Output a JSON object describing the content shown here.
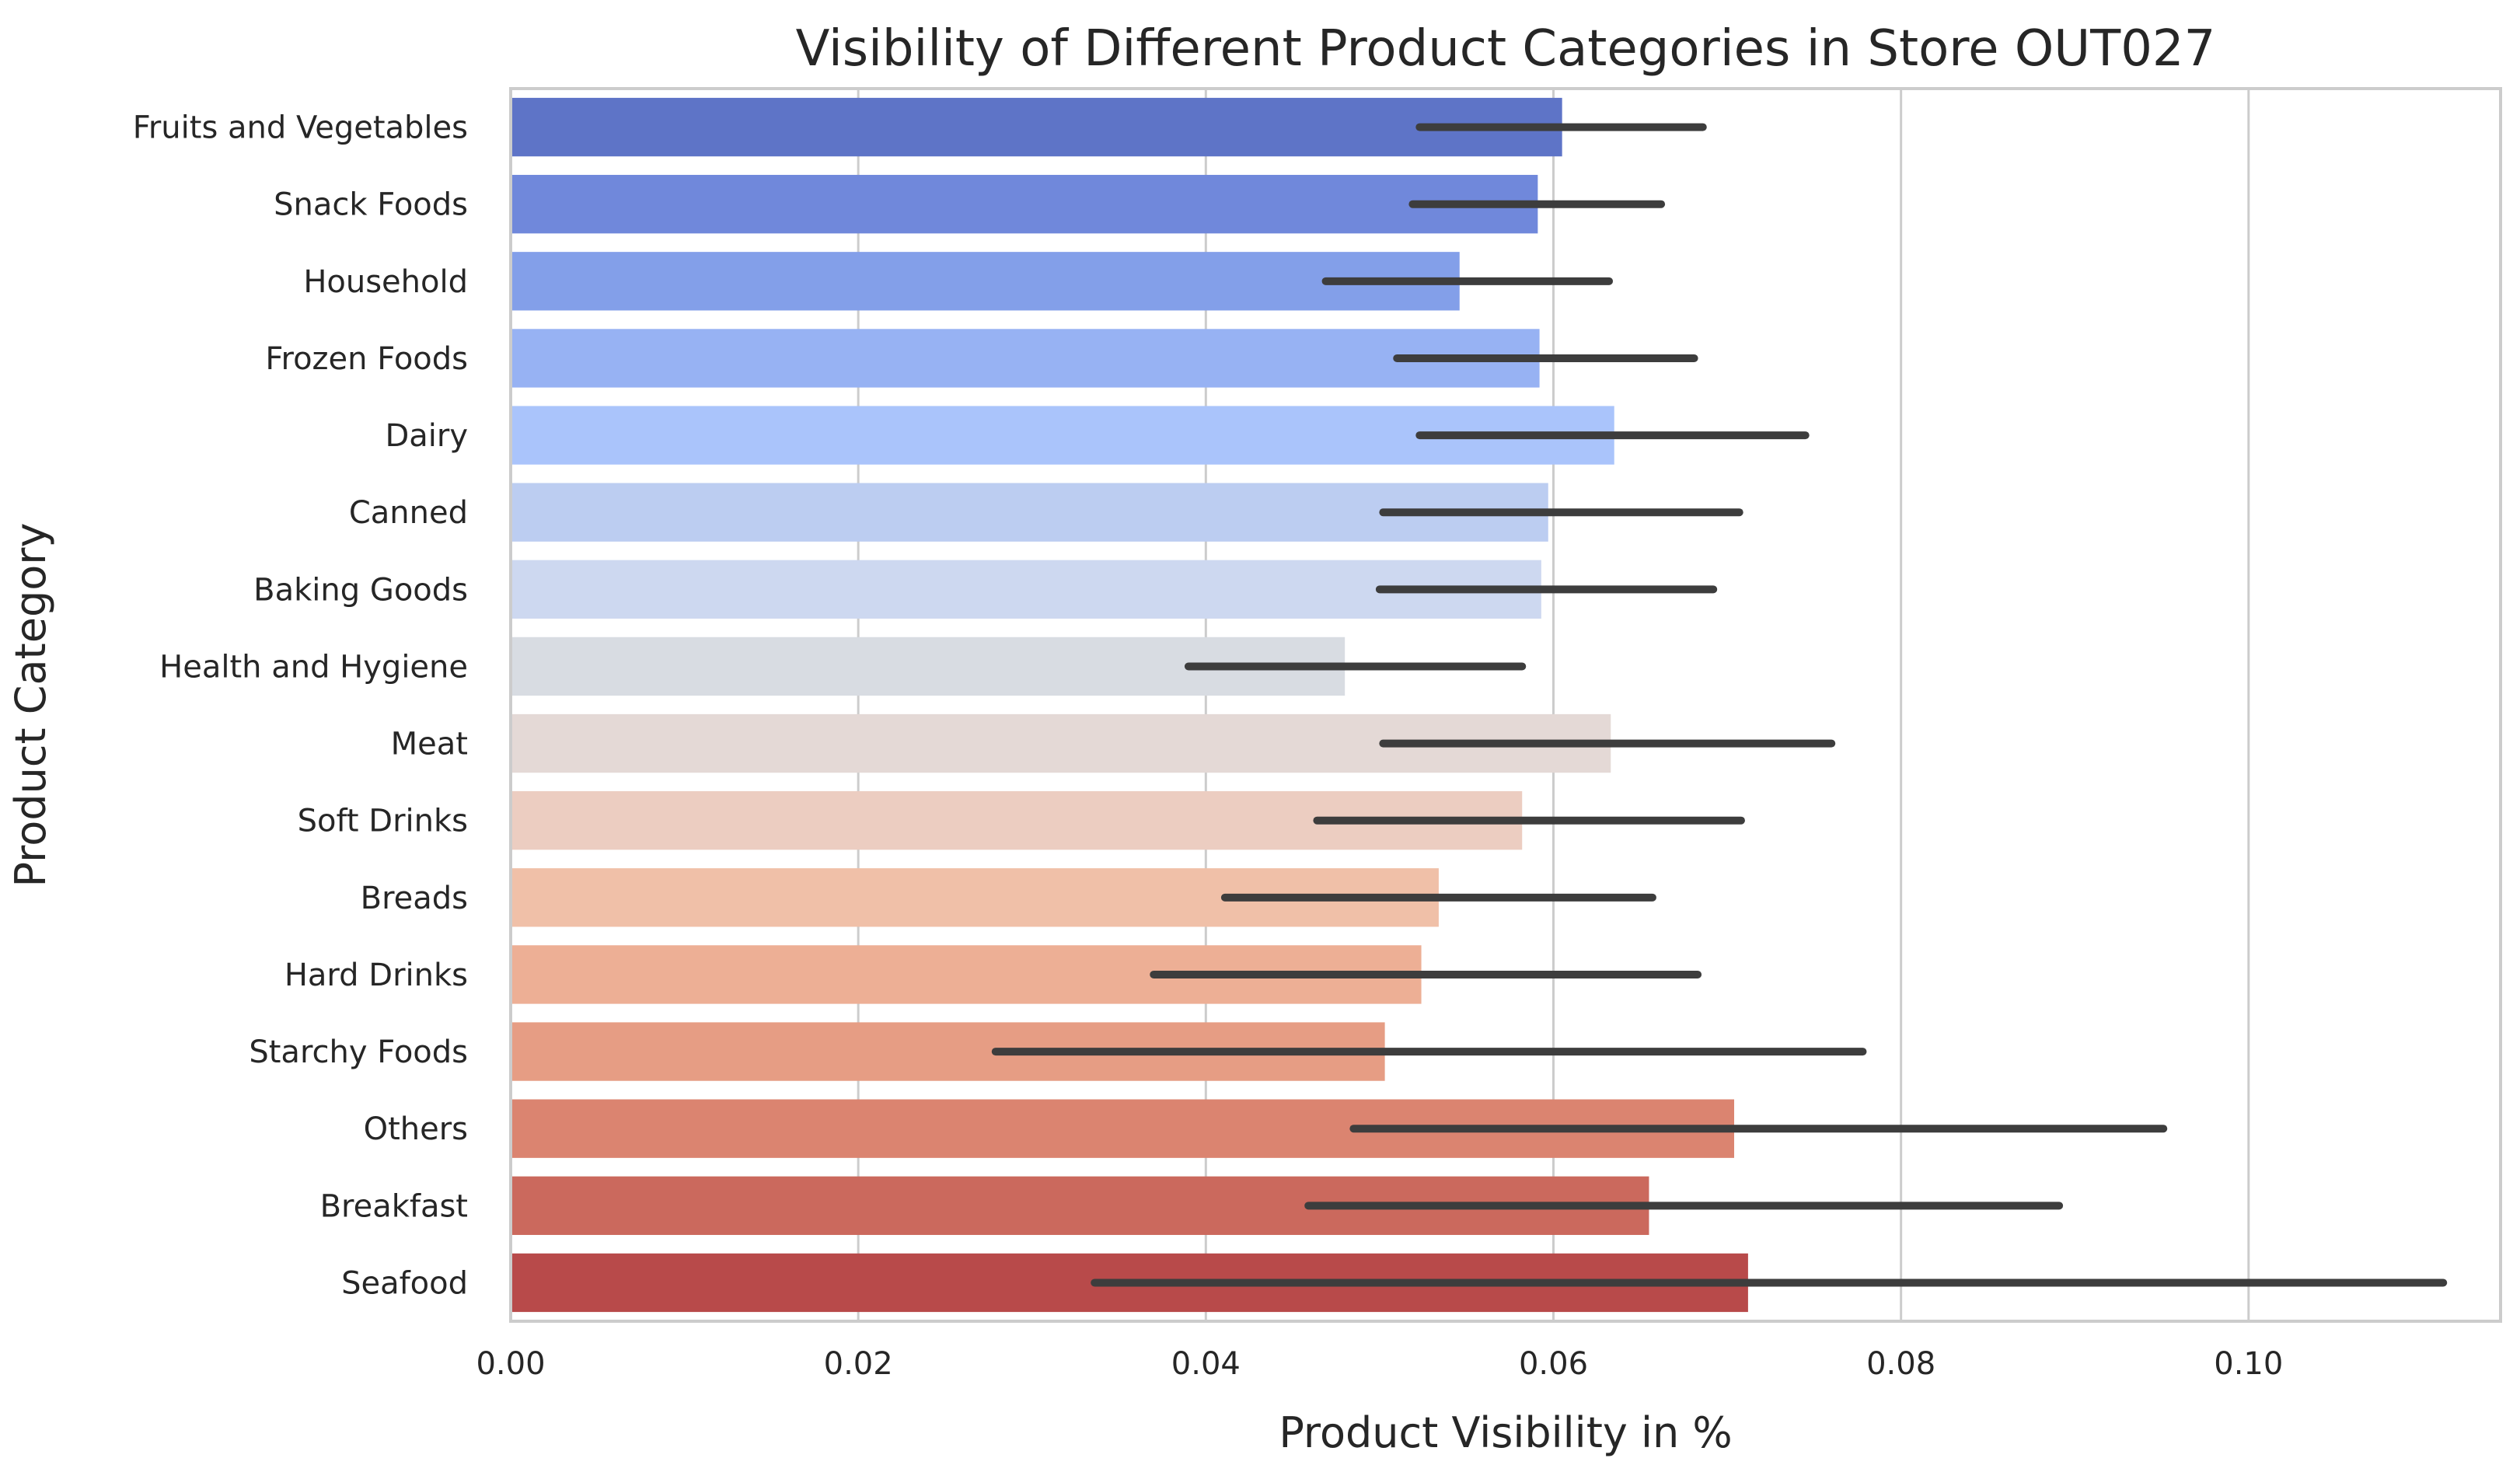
{
  "chart_data": {
    "type": "bar",
    "orientation": "horizontal",
    "title": "Visibility of Different Product Categories in Store OUT027",
    "xlabel": "Product Visibility in %",
    "ylabel": "Product Category",
    "xlim": [
      0,
      0.1145
    ],
    "xticks": [
      0.0,
      0.02,
      0.04,
      0.06,
      0.08,
      0.1
    ],
    "xtick_labels": [
      "0.00",
      "0.02",
      "0.04",
      "0.06",
      "0.08",
      "0.10"
    ],
    "grid": "x",
    "categories": [
      "Fruits and Vegetables",
      "Snack Foods",
      "Household",
      "Frozen Foods",
      "Dairy",
      "Canned",
      "Baking Goods",
      "Health and Hygiene",
      "Meat",
      "Soft Drinks",
      "Breads",
      "Hard Drinks",
      "Starchy Foods",
      "Others",
      "Breakfast",
      "Seafood"
    ],
    "values": [
      0.0605,
      0.0591,
      0.0546,
      0.0592,
      0.0635,
      0.0597,
      0.0593,
      0.048,
      0.0633,
      0.0582,
      0.0534,
      0.0524,
      0.0503,
      0.0704,
      0.0655,
      0.0712
    ],
    "error_low": [
      0.0523,
      0.0519,
      0.0469,
      0.051,
      0.0523,
      0.0502,
      0.05,
      0.039,
      0.0502,
      0.0464,
      0.0411,
      0.037,
      0.0279,
      0.0485,
      0.0459,
      0.0336
    ],
    "error_high": [
      0.0686,
      0.0662,
      0.0632,
      0.0681,
      0.0745,
      0.0707,
      0.0692,
      0.0582,
      0.076,
      0.0708,
      0.0657,
      0.0683,
      0.0778,
      0.0951,
      0.0891,
      0.1112
    ],
    "colors": [
      "#5e74c7",
      "#7088db",
      "#839fe9",
      "#97b2f3",
      "#aac4fb",
      "#bccdf1",
      "#cdd8f0",
      "#d8dce2",
      "#e4d9d6",
      "#eccdc1",
      "#f0c0a8",
      "#edaf95",
      "#e69d84",
      "#db8470",
      "#cb695d",
      "#b84a4a"
    ]
  }
}
